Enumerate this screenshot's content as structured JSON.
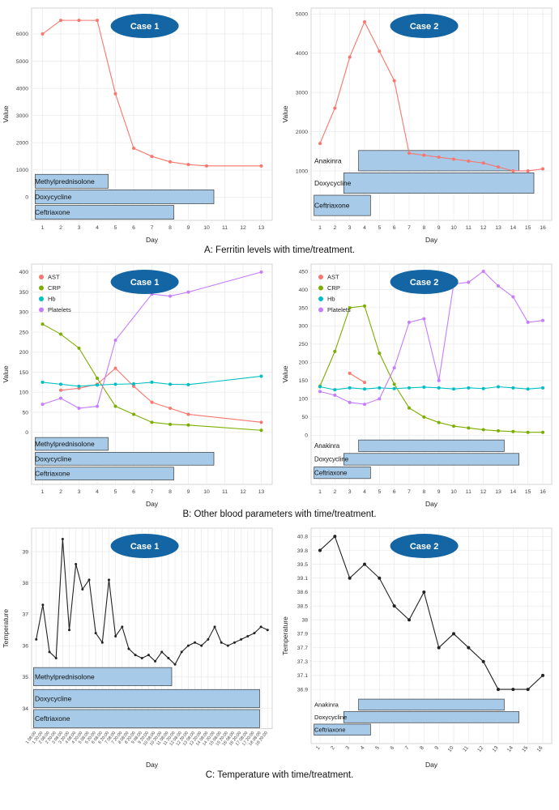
{
  "captions": {
    "a": "A: Ferritin levels with time/treatment.",
    "b": "B: Other blood parameters with time/treatment.",
    "c": "C: Temperature with time/treatment."
  },
  "colors": {
    "ast": "#F8766D",
    "crp": "#7CAE00",
    "hb": "#00BFC4",
    "platelets": "#C77CFF",
    "ferritin": "#F8766D",
    "temperature": "#222222",
    "treatment_fill": "#A6CAE8",
    "treatment_stroke": "#3A3A3A",
    "badge_fill": "#1465A3",
    "badge_text": "#FFFFFF",
    "grid": "#E9E9E9",
    "axis_text": "#444444",
    "panel_border": "#CCCCCC"
  },
  "chart_data": [
    {
      "id": "ferritin-case-1",
      "type": "line",
      "badge": "Case 1",
      "xlabel": "Day",
      "ylabel": "Value",
      "xlim": [
        0.4,
        13.6
      ],
      "x_ticks": [
        1,
        2,
        3,
        4,
        5,
        6,
        7,
        8,
        9,
        10,
        11,
        12,
        13
      ],
      "ylim": [
        -850,
        6950
      ],
      "y_ticks": [
        0,
        1000,
        2000,
        3000,
        4000,
        5000,
        6000
      ],
      "series": [
        {
          "name": "Ferritin",
          "color": "ferritin",
          "x": [
            1,
            2,
            3,
            4,
            5,
            6,
            7,
            8,
            9,
            10,
            13
          ],
          "y": [
            6000,
            6500,
            6500,
            6500,
            3800,
            1800,
            1500,
            1300,
            1200,
            1150,
            1150
          ]
        }
      ],
      "treatments": [
        {
          "label": "Methylprednisolone",
          "x0": 0.6,
          "x1": 4.6,
          "y0": 330,
          "y1": 840
        },
        {
          "label": "Doxycycline",
          "x0": 0.6,
          "x1": 10.4,
          "y0": -240,
          "y1": 270
        },
        {
          "label": "Ceftriaxone",
          "x0": 0.6,
          "x1": 8.2,
          "y0": -810,
          "y1": -300
        }
      ]
    },
    {
      "id": "ferritin-case-2",
      "type": "line",
      "badge": "Case 2",
      "xlabel": "Day",
      "ylabel": "Value",
      "xlim": [
        0.4,
        16.6
      ],
      "x_ticks": [
        1,
        2,
        3,
        4,
        5,
        6,
        7,
        8,
        9,
        10,
        11,
        12,
        13,
        14,
        15,
        16
      ],
      "ylim": [
        -260,
        5150
      ],
      "y_ticks": [
        1000,
        2000,
        3000,
        4000,
        5000
      ],
      "series": [
        {
          "name": "Ferritin",
          "color": "ferritin",
          "x": [
            1,
            2,
            3,
            4,
            5,
            6,
            7,
            8,
            9,
            10,
            11,
            12,
            13,
            14,
            15,
            16
          ],
          "y": [
            1700,
            2600,
            3900,
            4800,
            4050,
            3300,
            1450,
            1400,
            1350,
            1300,
            1250,
            1200,
            1100,
            1000,
            1000,
            1050
          ]
        }
      ],
      "treatments": [
        {
          "label": "Anakinra",
          "x0": 3.6,
          "x1": 14.4,
          "y0": 1000,
          "y1": 1520
        },
        {
          "label": "Doxycycline",
          "x0": 2.6,
          "x1": 15.4,
          "y0": 430,
          "y1": 950
        },
        {
          "label": "Ceftriaxone",
          "x0": 0.6,
          "x1": 4.4,
          "y0": -140,
          "y1": 380
        }
      ]
    },
    {
      "id": "blood-case-1",
      "type": "line",
      "badge": "Case 1",
      "xlabel": "Day",
      "ylabel": "Value",
      "xlim": [
        0.4,
        13.6
      ],
      "x_ticks": [
        1,
        2,
        3,
        4,
        5,
        6,
        7,
        8,
        9,
        10,
        11,
        12,
        13
      ],
      "ylim": [
        -130,
        420
      ],
      "y_ticks": [
        0,
        50,
        100,
        150,
        200,
        250,
        300,
        350,
        400
      ],
      "legend": {
        "position": "top-left",
        "entries": [
          {
            "label": "AST",
            "color": "ast"
          },
          {
            "label": "CRP",
            "color": "crp"
          },
          {
            "label": "Hb",
            "color": "hb"
          },
          {
            "label": "Platelets",
            "color": "platelets"
          }
        ]
      },
      "series": [
        {
          "name": "AST",
          "color": "ast",
          "x": [
            2,
            3,
            4,
            5,
            6,
            7,
            8,
            9,
            13
          ],
          "y": [
            105,
            110,
            120,
            160,
            115,
            75,
            60,
            45,
            25
          ]
        },
        {
          "name": "CRP",
          "color": "crp",
          "x": [
            1,
            2,
            3,
            4,
            5,
            6,
            7,
            8,
            9,
            13
          ],
          "y": [
            270,
            245,
            210,
            135,
            65,
            45,
            25,
            20,
            18,
            5
          ]
        },
        {
          "name": "Hb",
          "color": "hb",
          "x": [
            1,
            2,
            3,
            4,
            5,
            6,
            7,
            8,
            9,
            13
          ],
          "y": [
            125,
            120,
            115,
            118,
            120,
            121,
            125,
            120,
            119,
            140
          ]
        },
        {
          "name": "Platelets",
          "color": "platelets",
          "x": [
            1,
            2,
            3,
            4,
            5,
            7,
            8,
            9,
            13
          ],
          "y": [
            70,
            85,
            60,
            65,
            230,
            345,
            340,
            350,
            400
          ]
        }
      ],
      "treatments": [
        {
          "label": "Methylprednisolone",
          "x0": 0.6,
          "x1": 4.6,
          "y0": -45,
          "y1": -13
        },
        {
          "label": "Doxycycline",
          "x0": 0.6,
          "x1": 10.4,
          "y0": -82,
          "y1": -50
        },
        {
          "label": "Ceftriaxone",
          "x0": 0.6,
          "x1": 8.2,
          "y0": -119,
          "y1": -87
        }
      ]
    },
    {
      "id": "blood-case-2",
      "type": "line",
      "badge": "Case 2",
      "xlabel": "Day",
      "ylabel": "Value",
      "xlim": [
        0.4,
        16.6
      ],
      "x_ticks": [
        1,
        2,
        3,
        4,
        5,
        6,
        7,
        8,
        9,
        10,
        11,
        12,
        13,
        14,
        15,
        16
      ],
      "ylim": [
        -135,
        470
      ],
      "y_ticks": [
        0,
        50,
        100,
        150,
        200,
        250,
        300,
        350,
        400,
        450
      ],
      "legend": {
        "position": "top-left",
        "entries": [
          {
            "label": "AST",
            "color": "ast"
          },
          {
            "label": "CRP",
            "color": "crp"
          },
          {
            "label": "Hb",
            "color": "hb"
          },
          {
            "label": "Platelets",
            "color": "platelets"
          }
        ]
      },
      "series": [
        {
          "name": "AST",
          "color": "ast",
          "x": [
            3,
            4
          ],
          "y": [
            170,
            145
          ]
        },
        {
          "name": "CRP",
          "color": "crp",
          "x": [
            1,
            2,
            3,
            4,
            5,
            6,
            7,
            8,
            9,
            10,
            11,
            12,
            13,
            14,
            15,
            16
          ],
          "y": [
            135,
            230,
            350,
            355,
            225,
            140,
            75,
            50,
            35,
            25,
            20,
            15,
            12,
            10,
            8,
            8
          ]
        },
        {
          "name": "Hb",
          "color": "hb",
          "x": [
            1,
            2,
            3,
            4,
            5,
            6,
            7,
            8,
            9,
            10,
            11,
            12,
            13,
            14,
            15,
            16
          ],
          "y": [
            133,
            125,
            130,
            127,
            130,
            128,
            130,
            132,
            130,
            127,
            130,
            128,
            133,
            130,
            127,
            130
          ]
        },
        {
          "name": "Platelets",
          "color": "platelets",
          "x": [
            1,
            2,
            3,
            4,
            5,
            6,
            7,
            8,
            9,
            10,
            11,
            12,
            13,
            14,
            15,
            16
          ],
          "y": [
            120,
            110,
            90,
            85,
            100,
            185,
            310,
            320,
            150,
            415,
            420,
            450,
            410,
            380,
            310,
            315
          ]
        }
      ],
      "treatments": [
        {
          "label": "Anakinra",
          "x0": 3.6,
          "x1": 13.4,
          "y0": -45,
          "y1": -13
        },
        {
          "label": "Doxycycline",
          "x0": 2.6,
          "x1": 14.4,
          "y0": -82,
          "y1": -50
        },
        {
          "label": "Ceftriaxone",
          "x0": 0.6,
          "x1": 4.4,
          "y0": -119,
          "y1": -87
        }
      ]
    },
    {
      "id": "temperature-case-1",
      "type": "line",
      "badge": "Case 1",
      "xlabel": "Day",
      "ylabel": "Temperature",
      "xlim": [
        0.3,
        36.7
      ],
      "x_ticks": [
        1,
        2,
        3,
        4,
        5,
        6,
        7,
        8,
        9,
        10,
        11,
        12,
        13,
        14,
        15,
        16,
        17,
        18,
        19,
        20,
        21,
        22,
        23,
        24,
        25,
        26,
        27,
        28,
        29,
        30,
        31,
        32,
        33,
        34,
        35,
        36
      ],
      "x_tick_labels": [
        "1 08:00",
        "1 20:00",
        "2 08:00",
        "2 20:00",
        "3 08:00",
        "3 20:00",
        "4 08:00",
        "4 20:00",
        "5 08:00",
        "5 20:00",
        "6 08:00",
        "6 20:00",
        "7 08:00",
        "7 20:00",
        "8 08:00",
        "8 20:00",
        "9 08:00",
        "9 20:00",
        "10 08:00",
        "10 20:00",
        "11 08:00",
        "11 20:00",
        "12 08:00",
        "12 20:00",
        "13 08:00",
        "13 20:00",
        "14 08:00",
        "14 20:00",
        "15 08:00",
        "15 20:00",
        "16 08:00",
        "16 20:00",
        "17 08:00",
        "17 20:00",
        "18 08:00",
        "18 20:00"
      ],
      "x_tick_rotate": true,
      "ylim": [
        33.35,
        39.75
      ],
      "y_ticks": [
        34,
        35,
        36,
        37,
        38,
        39
      ],
      "series": [
        {
          "name": "Temperature",
          "color": "temperature",
          "x": [
            1,
            2,
            3,
            4,
            5,
            6,
            7,
            8,
            9,
            10,
            11,
            12,
            13,
            14,
            15,
            16,
            17,
            18,
            19,
            20,
            21,
            22,
            23,
            24,
            25,
            26,
            27,
            28,
            29,
            30,
            31,
            32,
            33,
            34,
            35,
            36
          ],
          "y": [
            36.2,
            37.3,
            35.8,
            35.6,
            39.4,
            36.5,
            38.6,
            37.8,
            38.1,
            36.4,
            36.1,
            38.1,
            36.3,
            36.6,
            35.9,
            35.7,
            35.6,
            35.7,
            35.5,
            35.8,
            35.6,
            35.4,
            35.8,
            36.0,
            36.1,
            36.0,
            36.2,
            36.6,
            36.1,
            36.0,
            36.1,
            36.2,
            36.3,
            36.4,
            36.6,
            36.5
          ]
        }
      ],
      "treatments": [
        {
          "label": "Methylprednisolone",
          "x0": 0.6,
          "x1": 21.5,
          "y0": 34.72,
          "y1": 35.3
        },
        {
          "label": "Doxycycline",
          "x0": 0.6,
          "x1": 34.8,
          "y0": 34.02,
          "y1": 34.6
        },
        {
          "label": "Ceftriaxone",
          "x0": 0.6,
          "x1": 34.8,
          "y0": 33.38,
          "y1": 33.96
        }
      ]
    },
    {
      "id": "temperature-case-2",
      "type": "line",
      "badge": "Case 2",
      "xlabel": "Day",
      "ylabel": "Temperature",
      "xlim": [
        0.4,
        16.6
      ],
      "x_ticks": [
        1,
        2,
        3,
        4,
        5,
        6,
        7,
        8,
        9,
        10,
        11,
        12,
        13,
        14,
        15,
        16
      ],
      "x_tick_rotate": true,
      "y_categories": [
        "40.8",
        "39.8",
        "39.5",
        "39.1",
        "38.6",
        "38.5",
        "38",
        "37.9",
        "37.7",
        "37.3",
        "37.1",
        "36.9"
      ],
      "y_index_range": [
        -0.6,
        14.9
      ],
      "series": [
        {
          "name": "Temperature",
          "color": "temperature",
          "x": [
            1,
            2,
            3,
            4,
            5,
            6,
            7,
            8,
            9,
            10,
            11,
            12,
            13,
            14,
            15,
            16
          ],
          "y": [
            39.8,
            40.8,
            39.1,
            39.5,
            39.1,
            38.5,
            38,
            38.6,
            37.7,
            37.9,
            37.7,
            37.3,
            36.9,
            36.9,
            36.9,
            37.1
          ]
        }
      ],
      "treatments": [
        {
          "label": "Anakinra",
          "x0": 3.6,
          "x1": 13.4,
          "y0": 11.7,
          "y1": 12.5
        },
        {
          "label": "Doxycycline",
          "x0": 2.6,
          "x1": 14.4,
          "y0": 12.6,
          "y1": 13.4
        },
        {
          "label": "Ceftriaxone",
          "x0": 0.6,
          "x1": 4.4,
          "y0": 13.5,
          "y1": 14.3
        }
      ]
    }
  ]
}
